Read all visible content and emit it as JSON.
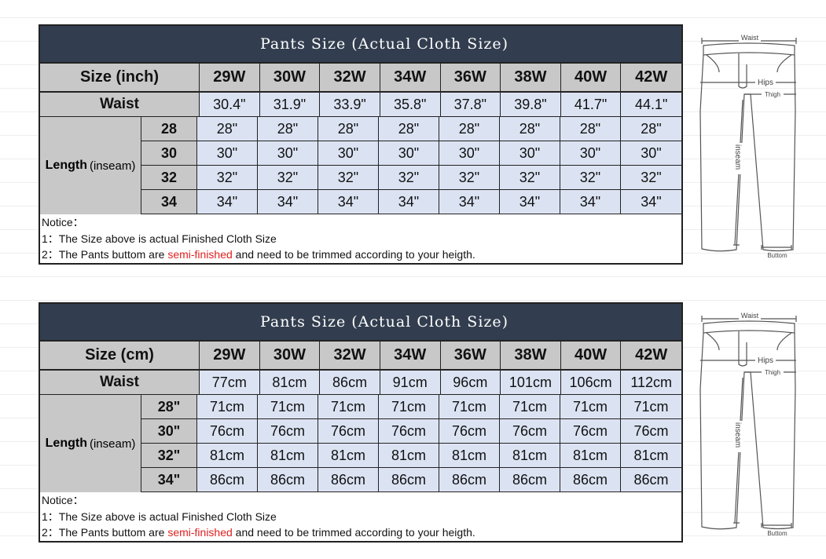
{
  "tables": [
    {
      "title": "Pants Size  (Actual Cloth Size)",
      "size_label": "Size (inch)",
      "sizes": [
        "29W",
        "30W",
        "32W",
        "34W",
        "36W",
        "38W",
        "40W",
        "42W"
      ],
      "waist_label": "Waist",
      "waist": [
        "30.4\"",
        "31.9\"",
        "33.9\"",
        "35.8\"",
        "37.8\"",
        "39.8\"",
        "41.7\"",
        "44.1\""
      ],
      "length_label_bold": "Length",
      "length_label_rest": "(inseam)",
      "lengths": [
        {
          "label": "28",
          "values": [
            "28\"",
            "28\"",
            "28\"",
            "28\"",
            "28\"",
            "28\"",
            "28\"",
            "28\""
          ]
        },
        {
          "label": "30",
          "values": [
            "30\"",
            "30\"",
            "30\"",
            "30\"",
            "30\"",
            "30\"",
            "30\"",
            "30\""
          ]
        },
        {
          "label": "32",
          "values": [
            "32\"",
            "32\"",
            "32\"",
            "32\"",
            "32\"",
            "32\"",
            "32\"",
            "32\""
          ]
        },
        {
          "label": "34",
          "values": [
            "34\"",
            "34\"",
            "34\"",
            "34\"",
            "34\"",
            "34\"",
            "34\"",
            "34\""
          ]
        }
      ],
      "notice": {
        "heading": "Notice：",
        "line1": "1：The Size above is actual Finished Cloth Size",
        "line2_a": "2：The Pants buttom are ",
        "line2_red": "semi-finished",
        "line2_b": " and need to be trimmed according to your heigth."
      }
    },
    {
      "title": "Pants Size  (Actual Cloth Size)",
      "size_label": "Size (cm)",
      "sizes": [
        "29W",
        "30W",
        "32W",
        "34W",
        "36W",
        "38W",
        "40W",
        "42W"
      ],
      "waist_label": "Waist",
      "waist": [
        "77cm",
        "81cm",
        "86cm",
        "91cm",
        "96cm",
        "101cm",
        "106cm",
        "112cm"
      ],
      "length_label_bold": "Length",
      "length_label_rest": "(inseam)",
      "lengths": [
        {
          "label": "28\"",
          "values": [
            "71cm",
            "71cm",
            "71cm",
            "71cm",
            "71cm",
            "71cm",
            "71cm",
            "71cm"
          ]
        },
        {
          "label": "30\"",
          "values": [
            "76cm",
            "76cm",
            "76cm",
            "76cm",
            "76cm",
            "76cm",
            "76cm",
            "76cm"
          ]
        },
        {
          "label": "32\"",
          "values": [
            "81cm",
            "81cm",
            "81cm",
            "81cm",
            "81cm",
            "81cm",
            "81cm",
            "81cm"
          ]
        },
        {
          "label": "34\"",
          "values": [
            "86cm",
            "86cm",
            "86cm",
            "86cm",
            "86cm",
            "86cm",
            "86cm",
            "86cm"
          ]
        }
      ],
      "notice": {
        "heading": "Notice：",
        "line1": "1：The Size above is actual Finished Cloth Size",
        "line2_a": "2：The Pants buttom are ",
        "line2_red": "semi-finished",
        "line2_b": " and need to be trimmed according to your heigth."
      }
    }
  ],
  "diagram": {
    "waist": "Waist",
    "hips": "Hips",
    "thigh": "Thigh",
    "inseam": "inseam",
    "bottom": "Buttom"
  },
  "colors": {
    "title_bg": "#323e4f",
    "header_bg": "#c8c8c8",
    "cell_bg": "#dbe3f3",
    "highlight": "#e02020"
  }
}
